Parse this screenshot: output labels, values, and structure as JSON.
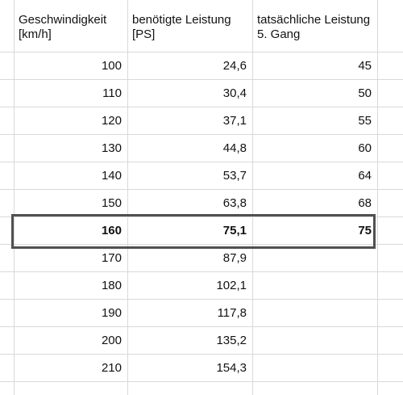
{
  "headers": [
    "Geschwindigkeit [km/h]",
    "benötigte Leistung [PS]",
    "tatsächliche Leistung 5. Gang"
  ],
  "rows": [
    {
      "speed": "100",
      "required": "24,6",
      "actual": "45",
      "bold": false
    },
    {
      "speed": "110",
      "required": "30,4",
      "actual": "50",
      "bold": false
    },
    {
      "speed": "120",
      "required": "37,1",
      "actual": "55",
      "bold": false
    },
    {
      "speed": "130",
      "required": "44,8",
      "actual": "60",
      "bold": false
    },
    {
      "speed": "140",
      "required": "53,7",
      "actual": "64",
      "bold": false
    },
    {
      "speed": "150",
      "required": "63,8",
      "actual": "68",
      "bold": false
    },
    {
      "speed": "160",
      "required": "75,1",
      "actual": "75",
      "bold": true
    },
    {
      "speed": "170",
      "required": "87,9",
      "actual": "",
      "bold": false
    },
    {
      "speed": "180",
      "required": "102,1",
      "actual": "",
      "bold": false
    },
    {
      "speed": "190",
      "required": "117,8",
      "actual": "",
      "bold": false
    },
    {
      "speed": "200",
      "required": "135,2",
      "actual": "",
      "bold": false
    },
    {
      "speed": "210",
      "required": "154,3",
      "actual": "",
      "bold": false
    }
  ],
  "selected_row_index": 6,
  "colors": {
    "grid": "#d9d9d9",
    "selection_border": "#505050",
    "text": "#111111"
  }
}
